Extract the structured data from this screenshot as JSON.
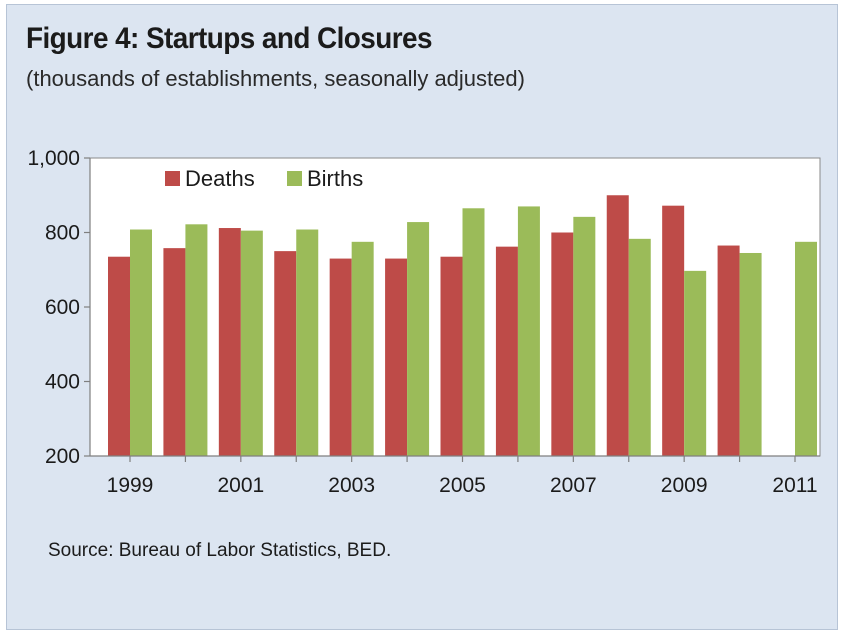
{
  "title": "Figure 4: Startups and Closures",
  "subtitle": "(thousands of establishments, seasonally adjusted)",
  "source": "Source: Bureau of Labor Statistics,  BED.",
  "colors": {
    "deaths": "#be4b48",
    "births": "#9bbb59",
    "background": "#dce5f1"
  },
  "chart_data": {
    "type": "bar",
    "title": "Figure 4: Startups and Closures",
    "subtitle": "(thousands of establishments, seasonally adjusted)",
    "categories": [
      "1999",
      "2000",
      "2001",
      "2002",
      "2003",
      "2004",
      "2005",
      "2006",
      "2007",
      "2008",
      "2009",
      "2010",
      "2011"
    ],
    "x_tick_labels": [
      "1999",
      "2001",
      "2003",
      "2005",
      "2007",
      "2009",
      "2011"
    ],
    "series": [
      {
        "name": "Deaths",
        "color": "#be4b48",
        "values": [
          735,
          758,
          812,
          750,
          730,
          730,
          735,
          762,
          800,
          900,
          872,
          765,
          null
        ]
      },
      {
        "name": "Births",
        "color": "#9bbb59",
        "values": [
          808,
          822,
          805,
          808,
          775,
          828,
          865,
          870,
          842,
          783,
          697,
          745,
          775
        ]
      }
    ],
    "ylim": [
      200,
      1000
    ],
    "y_ticks": [
      200,
      400,
      600,
      800,
      1000
    ],
    "y_tick_labels": [
      "200",
      "400",
      "600",
      "800",
      "1,000"
    ],
    "xlabel": "",
    "ylabel": "",
    "legend": "top-left-inside",
    "grid": false
  }
}
